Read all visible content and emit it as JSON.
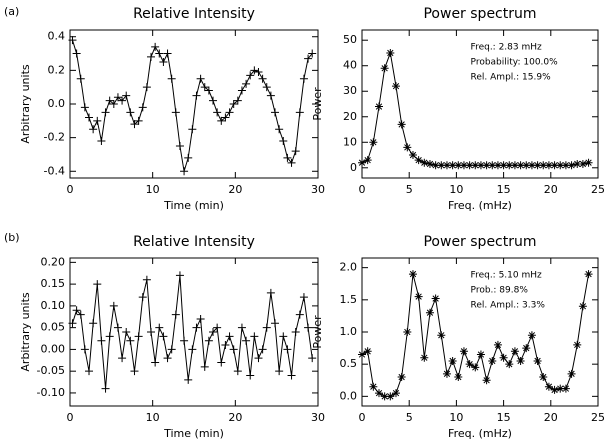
{
  "panel_labels": [
    "(a)",
    "(b)"
  ],
  "chart_data": [
    {
      "type": "line",
      "title": "Relative Intensity",
      "x_label": "Time (min)",
      "y_label": "Arbitrary units",
      "marker": "+",
      "color": "#000000",
      "x": [
        0.3,
        0.8,
        1.3,
        1.8,
        2.3,
        2.8,
        3.3,
        3.8,
        4.3,
        4.8,
        5.3,
        5.8,
        6.3,
        6.8,
        7.3,
        7.8,
        8.3,
        8.8,
        9.3,
        9.8,
        10.3,
        10.8,
        11.3,
        11.8,
        12.3,
        12.8,
        13.3,
        13.8,
        14.3,
        14.8,
        15.3,
        15.8,
        16.3,
        16.8,
        17.3,
        17.8,
        18.3,
        18.8,
        19.3,
        19.8,
        20.3,
        20.8,
        21.3,
        21.8,
        22.3,
        22.8,
        23.3,
        23.8,
        24.3,
        24.8,
        25.3,
        25.8,
        26.3,
        26.8,
        27.3,
        27.8,
        28.3,
        28.8,
        29.3
      ],
      "values": [
        0.38,
        0.3,
        0.15,
        -0.02,
        -0.08,
        -0.15,
        -0.1,
        -0.22,
        -0.05,
        0.02,
        0.0,
        0.04,
        0.02,
        0.05,
        -0.05,
        -0.12,
        -0.1,
        -0.02,
        0.1,
        0.28,
        0.34,
        0.3,
        0.25,
        0.3,
        0.15,
        -0.05,
        -0.25,
        -0.4,
        -0.32,
        -0.15,
        0.05,
        0.15,
        0.1,
        0.08,
        0.02,
        -0.05,
        -0.1,
        -0.08,
        -0.05,
        0.0,
        0.02,
        0.08,
        0.12,
        0.17,
        0.2,
        0.19,
        0.15,
        0.1,
        0.05,
        -0.05,
        -0.15,
        -0.22,
        -0.32,
        -0.35,
        -0.28,
        -0.05,
        0.15,
        0.27,
        0.3
      ],
      "xlim": [
        0,
        30
      ],
      "xticks": [
        0,
        10,
        20,
        30
      ],
      "ylim": [
        -0.44,
        0.44
      ],
      "yticks": [
        -0.4,
        -0.2,
        {
          "value": 0,
          "label": "0.0"
        },
        0.2,
        0.4
      ]
    },
    {
      "type": "line",
      "title": "Power spectrum",
      "x_label": "Freq. (mHz)",
      "y_label": "Power",
      "marker": "*",
      "color": "#000000",
      "annotations": [
        "Freq.: 2.83 mHz",
        "Probability: 100.0%",
        "Rel. Ampl.: 15.9%"
      ],
      "x": [
        0,
        0.6,
        1.2,
        1.8,
        2.4,
        3.0,
        3.6,
        4.2,
        4.8,
        5.4,
        6.0,
        6.6,
        7.2,
        7.8,
        8.4,
        9.0,
        9.6,
        10.2,
        10.8,
        11.4,
        12.0,
        12.6,
        13.2,
        13.8,
        14.4,
        15.0,
        15.6,
        16.2,
        16.8,
        17.4,
        18.0,
        18.6,
        19.2,
        19.8,
        20.4,
        21.0,
        21.6,
        22.2,
        22.8,
        23.4,
        24.0
      ],
      "values": [
        2,
        3,
        10,
        24,
        39,
        45,
        32,
        17,
        8,
        5,
        3,
        2,
        1.5,
        1,
        1,
        1,
        1,
        1,
        1,
        1,
        1,
        1,
        1,
        1,
        1,
        1,
        1,
        1,
        1,
        1,
        1,
        1,
        1,
        1,
        1,
        1,
        1,
        1,
        1.5,
        1.5,
        2
      ],
      "xlim": [
        0,
        25
      ],
      "xticks": [
        0,
        5,
        10,
        15,
        20,
        25
      ],
      "ylim": [
        -4,
        54
      ],
      "yticks": [
        0,
        10,
        20,
        30,
        40,
        50
      ]
    },
    {
      "type": "line",
      "title": "Relative Intensity",
      "x_label": "Time (min)",
      "y_label": "Arbitrary units",
      "marker": "+",
      "color": "#000000",
      "x": [
        0.3,
        0.8,
        1.3,
        1.8,
        2.3,
        2.8,
        3.3,
        3.8,
        4.3,
        4.8,
        5.3,
        5.8,
        6.3,
        6.8,
        7.3,
        7.8,
        8.3,
        8.8,
        9.3,
        9.8,
        10.3,
        10.8,
        11.3,
        11.8,
        12.3,
        12.8,
        13.3,
        13.8,
        14.3,
        14.8,
        15.3,
        15.8,
        16.3,
        16.8,
        17.3,
        17.8,
        18.3,
        18.8,
        19.3,
        19.8,
        20.3,
        20.8,
        21.3,
        21.8,
        22.3,
        22.8,
        23.3,
        23.8,
        24.3,
        24.8,
        25.3,
        25.8,
        26.3,
        26.8,
        27.3,
        27.8,
        28.3,
        28.8,
        29.3
      ],
      "values": [
        0.06,
        0.09,
        0.08,
        0.0,
        -0.05,
        0.06,
        0.15,
        0.02,
        -0.09,
        0.03,
        0.1,
        0.05,
        -0.02,
        0.04,
        0.02,
        -0.05,
        0.03,
        0.12,
        0.16,
        0.04,
        -0.03,
        0.05,
        0.03,
        -0.02,
        0.0,
        0.08,
        0.17,
        0.02,
        -0.07,
        0.0,
        0.05,
        0.07,
        -0.04,
        0.02,
        0.04,
        0.05,
        -0.03,
        0.01,
        0.03,
        0.0,
        -0.05,
        0.05,
        0.02,
        -0.06,
        0.03,
        -0.02,
        0.0,
        0.05,
        0.13,
        0.06,
        -0.05,
        0.03,
        0.0,
        -0.06,
        0.04,
        0.08,
        0.12,
        0.05,
        -0.02
      ],
      "xlim": [
        0,
        30
      ],
      "xticks": [
        0,
        10,
        20,
        30
      ],
      "ylim": [
        -0.13,
        0.21
      ],
      "yticks": [
        {
          "value": -0.1,
          "label": "-0.10"
        },
        -0.05,
        {
          "value": 0,
          "label": "0.00"
        },
        0.05,
        {
          "value": 0.1,
          "label": "0.10"
        },
        0.15,
        {
          "value": 0.2,
          "label": "0.20"
        }
      ]
    },
    {
      "type": "line",
      "title": "Power spectrum",
      "x_label": "Freq. (mHz)",
      "y_label": "Power",
      "marker": "*",
      "color": "#000000",
      "annotations": [
        "Freq.: 5.10 mHz",
        "Prob.: 89.8%",
        "Rel. Ampl.: 3.3%"
      ],
      "x": [
        0,
        0.6,
        1.2,
        1.8,
        2.4,
        3.0,
        3.6,
        4.2,
        4.8,
        5.4,
        6.0,
        6.6,
        7.2,
        7.8,
        8.4,
        9.0,
        9.6,
        10.2,
        10.8,
        11.4,
        12.0,
        12.6,
        13.2,
        13.8,
        14.4,
        15.0,
        15.6,
        16.2,
        16.8,
        17.4,
        18.0,
        18.6,
        19.2,
        19.8,
        20.4,
        21.0,
        21.6,
        22.2,
        22.8,
        23.4,
        24.0
      ],
      "values": [
        0.65,
        0.7,
        0.15,
        0.05,
        0.0,
        0.0,
        0.05,
        0.3,
        1.0,
        1.9,
        1.55,
        0.6,
        1.3,
        1.52,
        0.95,
        0.35,
        0.55,
        0.3,
        0.7,
        0.5,
        0.45,
        0.65,
        0.25,
        0.55,
        0.8,
        0.6,
        0.5,
        0.7,
        0.55,
        0.75,
        0.95,
        0.55,
        0.3,
        0.15,
        0.1,
        0.12,
        0.12,
        0.35,
        0.8,
        1.4,
        1.9
      ],
      "xlim": [
        0,
        25
      ],
      "xticks": [
        0,
        5,
        10,
        15,
        20,
        25
      ],
      "ylim": [
        -0.15,
        2.15
      ],
      "yticks": [
        {
          "value": 0,
          "label": "0.0"
        },
        0.5,
        {
          "value": 1,
          "label": "1.0"
        },
        1.5,
        {
          "value": 2,
          "label": "2.0"
        }
      ]
    }
  ]
}
